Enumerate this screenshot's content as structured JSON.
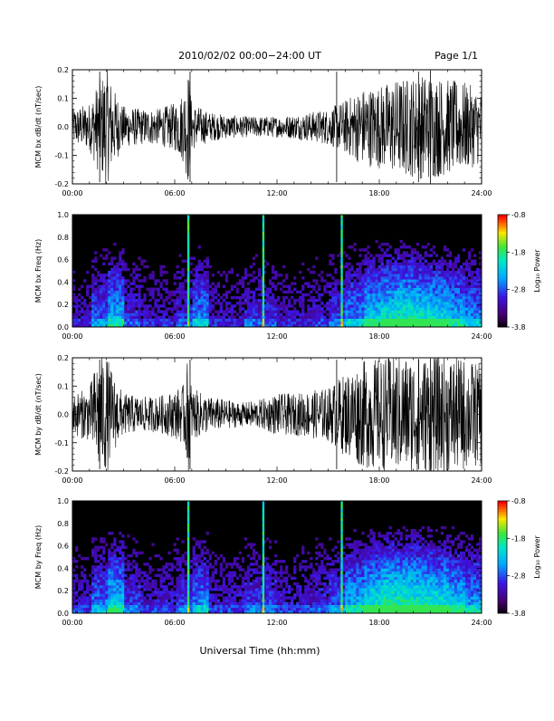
{
  "header": {
    "title": "2010/02/02  00:00−24:00 UT",
    "page": "Page 1/1"
  },
  "footer": {
    "xlabel": "Universal Time (hh:mm)"
  },
  "colorbar": {
    "label": "Log₁₀ Power",
    "ticks": [
      "-0.8",
      "-1.8",
      "-2.8",
      "-3.8"
    ]
  },
  "chart_data": [
    {
      "type": "line",
      "ylabel": "MCM bx dB/dt (nT/sec)",
      "xlim": [
        0,
        24
      ],
      "ylim": [
        -0.2,
        0.2
      ],
      "xticks": [
        "00:00",
        "06:00",
        "12:00",
        "18:00",
        "24:00"
      ],
      "yticks": [
        "-0.2",
        "-0.1",
        "0.0",
        "0.1",
        "0.2"
      ],
      "series": [
        {
          "x_hours": [
            0,
            1,
            1.5,
            2,
            2.5,
            3,
            4,
            5,
            6,
            6.5,
            6.8,
            7,
            8,
            9,
            10,
            11,
            12,
            13,
            14,
            15,
            16,
            17,
            18,
            19,
            20,
            21,
            22,
            23,
            24
          ],
          "envelope_amplitude": [
            0.06,
            0.08,
            0.15,
            0.2,
            0.12,
            0.07,
            0.06,
            0.06,
            0.08,
            0.12,
            0.2,
            0.08,
            0.05,
            0.04,
            0.035,
            0.035,
            0.035,
            0.04,
            0.05,
            0.06,
            0.09,
            0.13,
            0.14,
            0.16,
            0.17,
            0.18,
            0.16,
            0.15,
            0.12
          ],
          "color": "#000000"
        }
      ]
    },
    {
      "type": "heatmap",
      "ylabel": "MCM bx Freq (Hz)",
      "xlim": [
        0,
        24
      ],
      "ylim": [
        0.0,
        1.0
      ],
      "zlim": [
        -3.8,
        -0.8
      ],
      "xticks": [
        "00:00",
        "06:00",
        "12:00",
        "18:00",
        "24:00"
      ],
      "yticks": [
        "0.0",
        "0.2",
        "0.4",
        "0.6",
        "0.8",
        "1.0"
      ],
      "spikes_hours": [
        6.8,
        11.2,
        15.8
      ],
      "activity_by_hour": [
        0.3,
        0.5,
        0.7,
        0.4,
        0.3,
        0.3,
        0.4,
        0.6,
        0.3,
        0.3,
        0.4,
        0.4,
        0.3,
        0.3,
        0.35,
        0.45,
        0.6,
        0.75,
        0.85,
        0.9,
        0.85,
        0.8,
        0.7,
        0.6
      ]
    },
    {
      "type": "line",
      "ylabel": "MCM by dB/dt (nT/sec)",
      "xlim": [
        0,
        24
      ],
      "ylim": [
        -0.2,
        0.2
      ],
      "xticks": [
        "00:00",
        "06:00",
        "12:00",
        "18:00",
        "24:00"
      ],
      "yticks": [
        "-0.2",
        "-0.1",
        "0.0",
        "0.1",
        "0.2"
      ],
      "series": [
        {
          "x_hours": [
            0,
            1,
            1.5,
            2,
            2.5,
            3,
            4,
            5,
            6,
            6.5,
            6.8,
            7,
            8,
            9,
            10,
            11,
            12,
            13,
            14,
            15,
            16,
            17,
            18,
            19,
            20,
            21,
            22,
            23,
            24
          ],
          "envelope_amplitude": [
            0.07,
            0.09,
            0.2,
            0.2,
            0.12,
            0.07,
            0.06,
            0.06,
            0.08,
            0.1,
            0.2,
            0.09,
            0.06,
            0.05,
            0.04,
            0.05,
            0.07,
            0.07,
            0.08,
            0.09,
            0.14,
            0.18,
            0.19,
            0.2,
            0.2,
            0.2,
            0.2,
            0.19,
            0.17
          ],
          "color": "#000000"
        }
      ]
    },
    {
      "type": "heatmap",
      "ylabel": "MCM by Freq (Hz)",
      "xlim": [
        0,
        24
      ],
      "ylim": [
        0.0,
        1.0
      ],
      "zlim": [
        -3.8,
        -0.8
      ],
      "xticks": [
        "00:00",
        "06:00",
        "12:00",
        "18:00",
        "24:00"
      ],
      "yticks": [
        "0.0",
        "0.2",
        "0.4",
        "0.6",
        "0.8",
        "1.0"
      ],
      "spikes_hours": [
        6.8,
        11.2,
        15.8
      ],
      "activity_by_hour": [
        0.35,
        0.55,
        0.75,
        0.45,
        0.35,
        0.35,
        0.45,
        0.6,
        0.35,
        0.35,
        0.45,
        0.45,
        0.35,
        0.35,
        0.4,
        0.5,
        0.7,
        0.85,
        0.95,
        0.95,
        0.9,
        0.85,
        0.75,
        0.65
      ]
    }
  ]
}
